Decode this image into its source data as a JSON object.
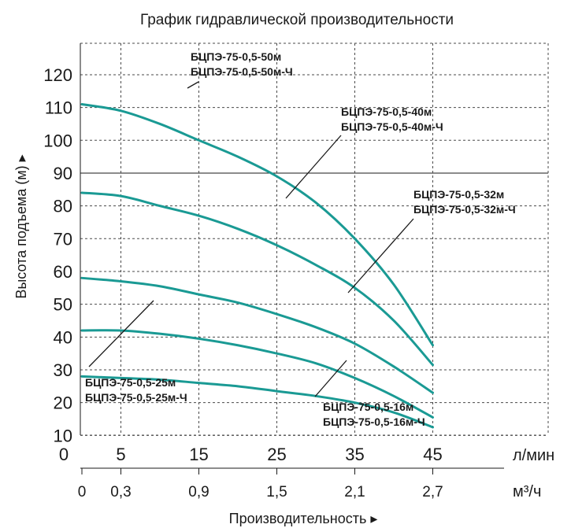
{
  "chart_data": {
    "type": "line",
    "title": "График гидравлической производительности",
    "ylabel": "Высота подъема (м) ▸",
    "xlabel": "Производительность ▸",
    "y_ticks": [
      10,
      20,
      30,
      40,
      50,
      60,
      70,
      80,
      90,
      100,
      110,
      120
    ],
    "ylim": [
      0,
      120
    ],
    "x_ticks": [
      0,
      5,
      15,
      25,
      35,
      45
    ],
    "x_unit": "л/мин",
    "xlim": [
      0,
      45
    ],
    "x_ticks_secondary": [
      "0",
      "0,3",
      "0,9",
      "1,5",
      "2,1",
      "2,7"
    ],
    "x_unit_secondary": "м³/ч",
    "grid": true,
    "curve_color": "#1a9a94",
    "series": [
      {
        "name": "БЦПЭ-75-0,5-50м",
        "name2": "БЦПЭ-75-0,5-50м-Ч",
        "x": [
          0,
          5,
          10,
          15,
          20,
          25,
          30,
          35,
          40,
          45
        ],
        "y": [
          111,
          109,
          105,
          100,
          95,
          89,
          81,
          70,
          56,
          37.5
        ]
      },
      {
        "name": "БЦПЭ-75-0,5-40м",
        "name2": "БЦПЭ-75-0,5-40м-Ч",
        "x": [
          0,
          5,
          10,
          15,
          20,
          25,
          30,
          35,
          40,
          45
        ],
        "y": [
          84,
          83,
          80,
          77,
          73,
          68,
          62,
          55,
          45,
          31.5
        ]
      },
      {
        "name": "БЦПЭ-75-0,5-32м",
        "name2": "БЦПЭ-75-0,5-32м-Ч",
        "x": [
          0,
          5,
          10,
          15,
          20,
          25,
          30,
          35,
          40,
          45
        ],
        "y": [
          58,
          57,
          55.5,
          53,
          50.5,
          47,
          43,
          38,
          31,
          23
        ]
      },
      {
        "name": "БЦПЭ-75-0,5-25м",
        "name2": "БЦПЭ-75-0,5-25м-Ч",
        "x": [
          0,
          5,
          10,
          15,
          20,
          25,
          30,
          35,
          40,
          45
        ],
        "y": [
          42,
          42,
          41,
          39.5,
          37.5,
          35,
          32,
          27.5,
          22,
          15.5
        ]
      },
      {
        "name": "БЦПЭ-75-0,5-16м",
        "name2": "БЦПЭ-75-0,5-16м-Ч",
        "x": [
          0,
          5,
          10,
          15,
          20,
          25,
          30,
          35,
          40,
          45
        ],
        "y": [
          28,
          27.5,
          27,
          26,
          25,
          23.5,
          22,
          20,
          17,
          12.5
        ]
      }
    ]
  }
}
